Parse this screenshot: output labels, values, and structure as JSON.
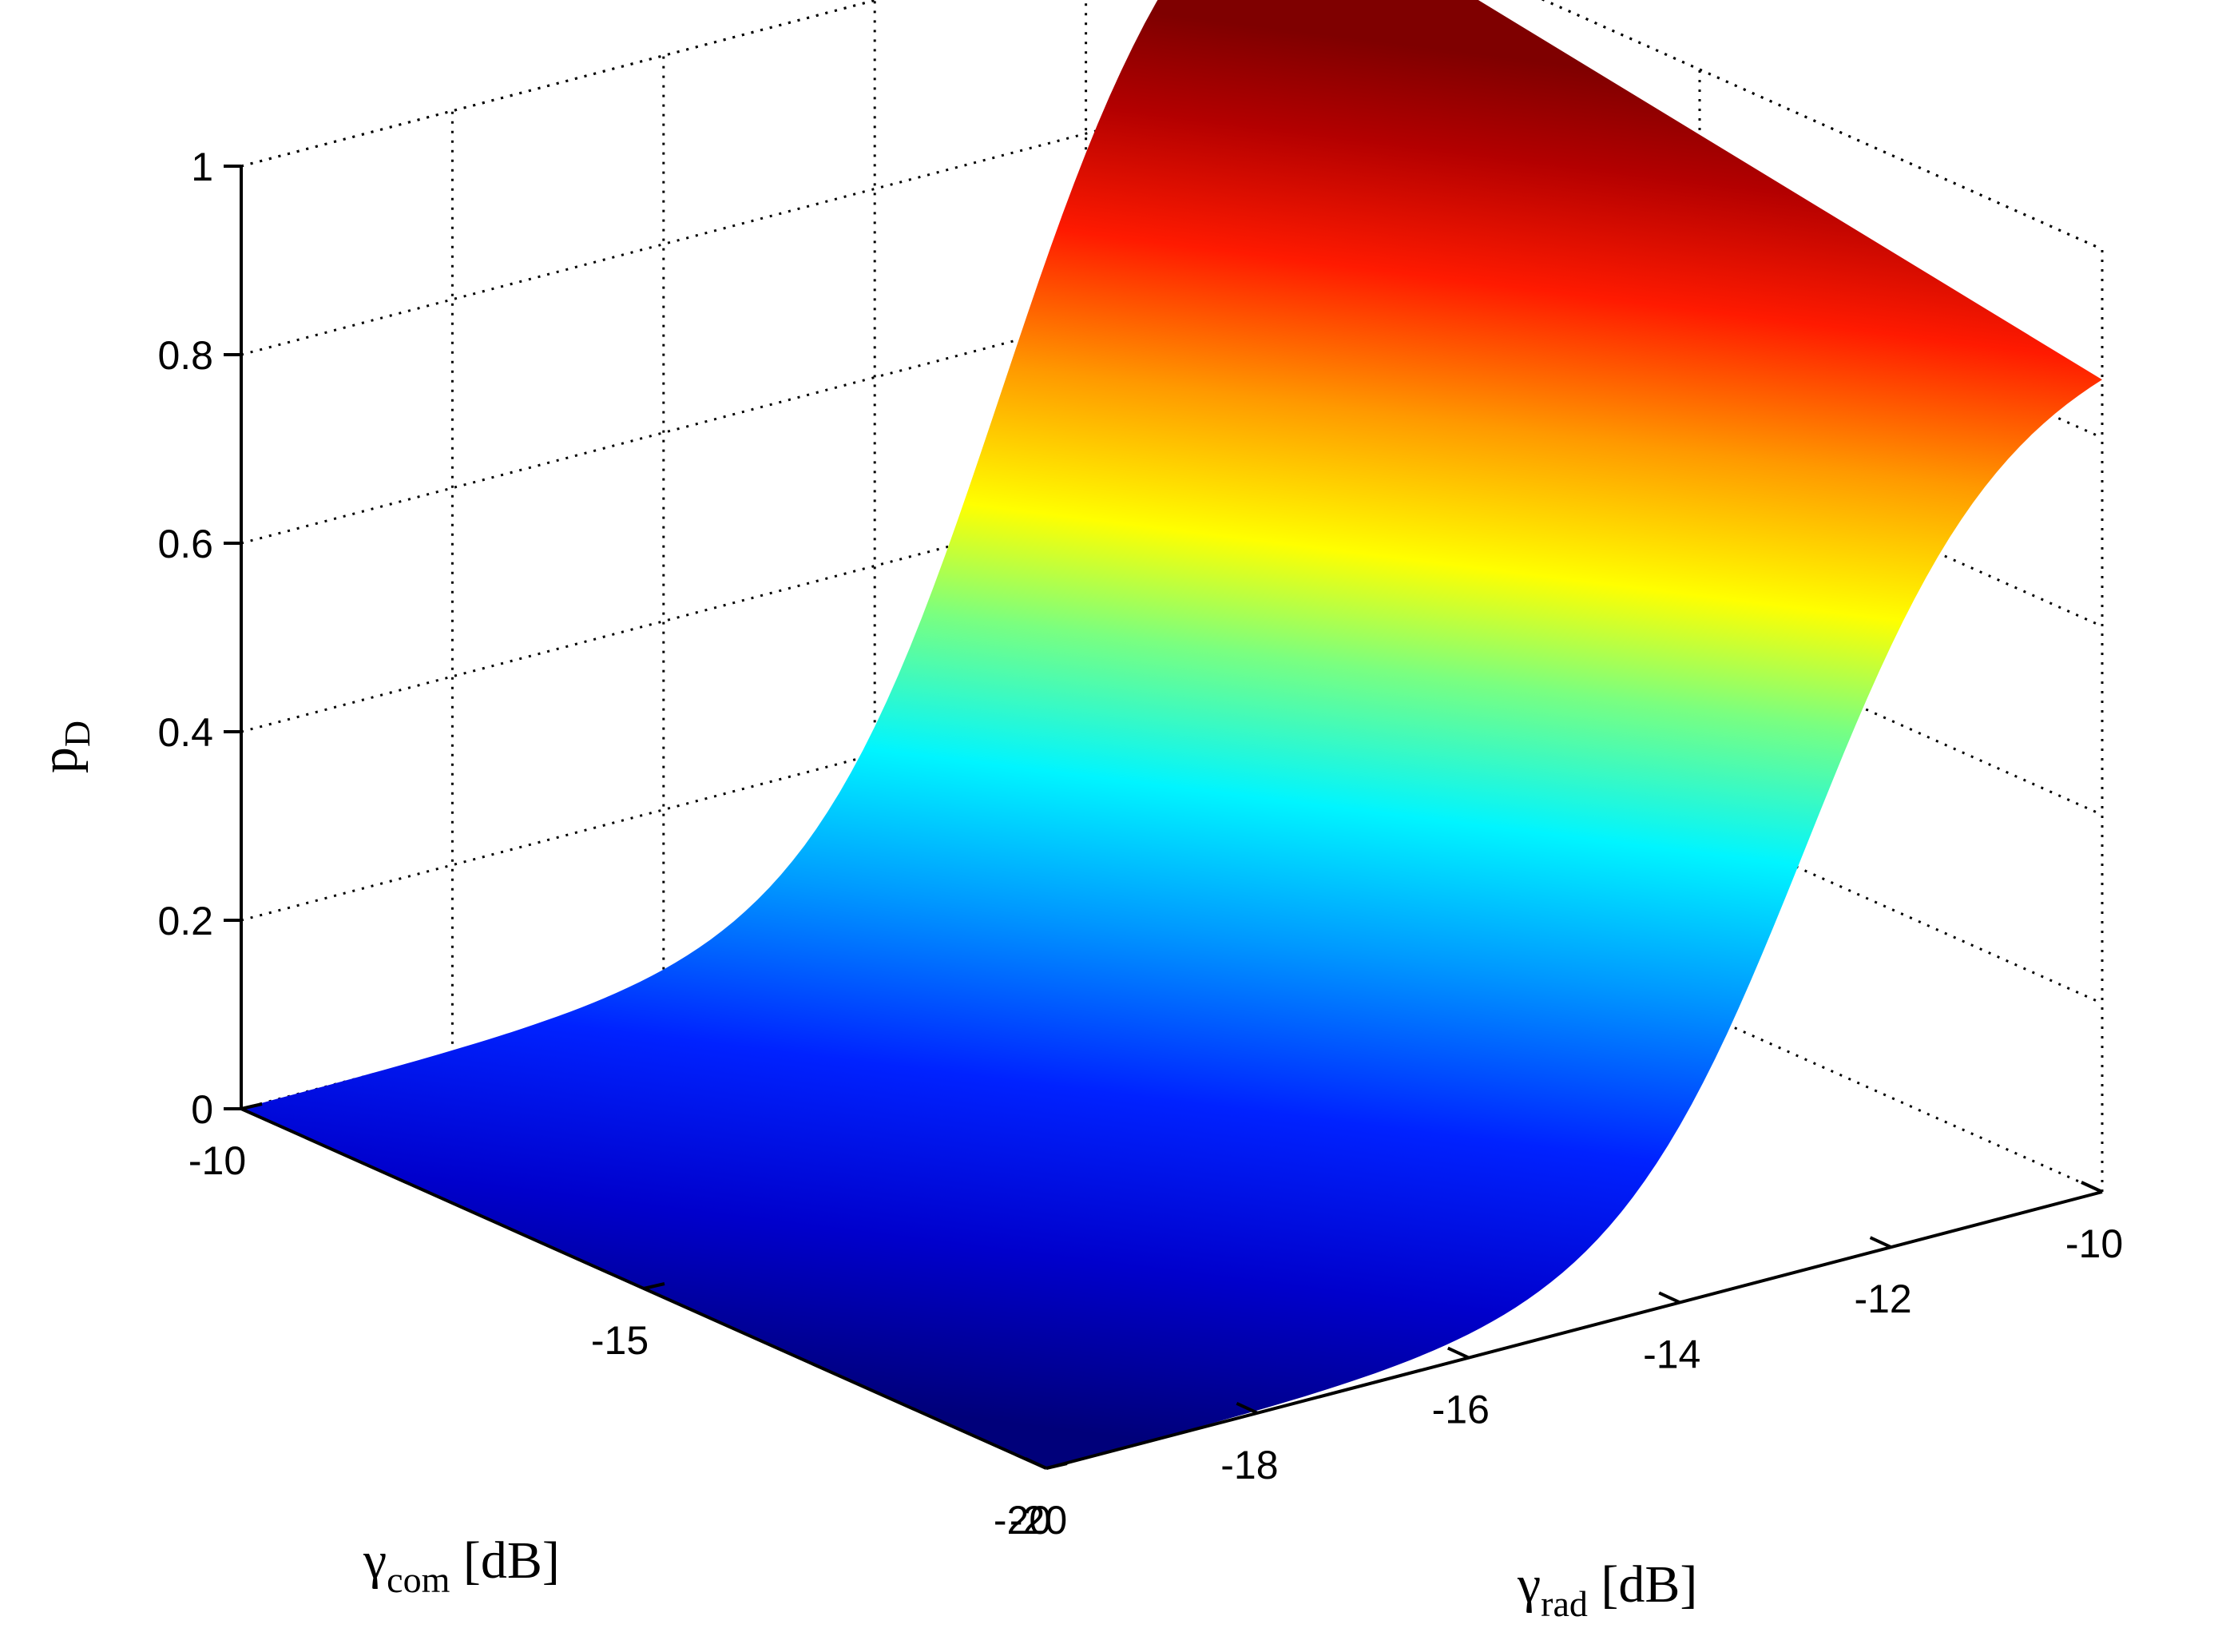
{
  "chart_data": {
    "type": "surface",
    "title": "",
    "xlabel": {
      "symbol": "γ",
      "sub": "rad",
      "unit": " [dB]"
    },
    "ylabel": {
      "symbol": "γ",
      "sub": "com",
      "unit": " [dB]"
    },
    "zlabel": {
      "symbol": "p",
      "sub": "D",
      "unit": ""
    },
    "xlim": [
      -20,
      -10
    ],
    "ylim": [
      -20,
      -10
    ],
    "zlim": [
      0,
      1
    ],
    "x_ticks": [
      "-20",
      "-18",
      "-16",
      "-14",
      "-12",
      "-10"
    ],
    "y_ticks": [
      "-20",
      "-15",
      "-10"
    ],
    "z_ticks": [
      "0",
      "0.2",
      "0.4",
      "0.6",
      "0.8",
      "1"
    ],
    "grid": "on",
    "colormap": "jet",
    "surface": {
      "gamma_rad_dB": [
        -20,
        -18,
        -16,
        -14,
        -12,
        -10
      ],
      "gamma_com_dB": [
        -20,
        -17.5,
        -15,
        -12.5,
        -10
      ],
      "pD": [
        [
          0.0,
          0.0,
          0.0,
          0.0,
          0.0
        ],
        [
          0.01,
          0.01,
          0.01,
          0.01,
          0.01
        ],
        [
          0.05,
          0.05,
          0.05,
          0.05,
          0.05
        ],
        [
          0.3,
          0.31,
          0.32,
          0.33,
          0.34
        ],
        [
          0.78,
          0.8,
          0.82,
          0.84,
          0.86
        ],
        [
          0.98,
          0.98,
          0.99,
          0.99,
          0.99
        ]
      ]
    }
  }
}
